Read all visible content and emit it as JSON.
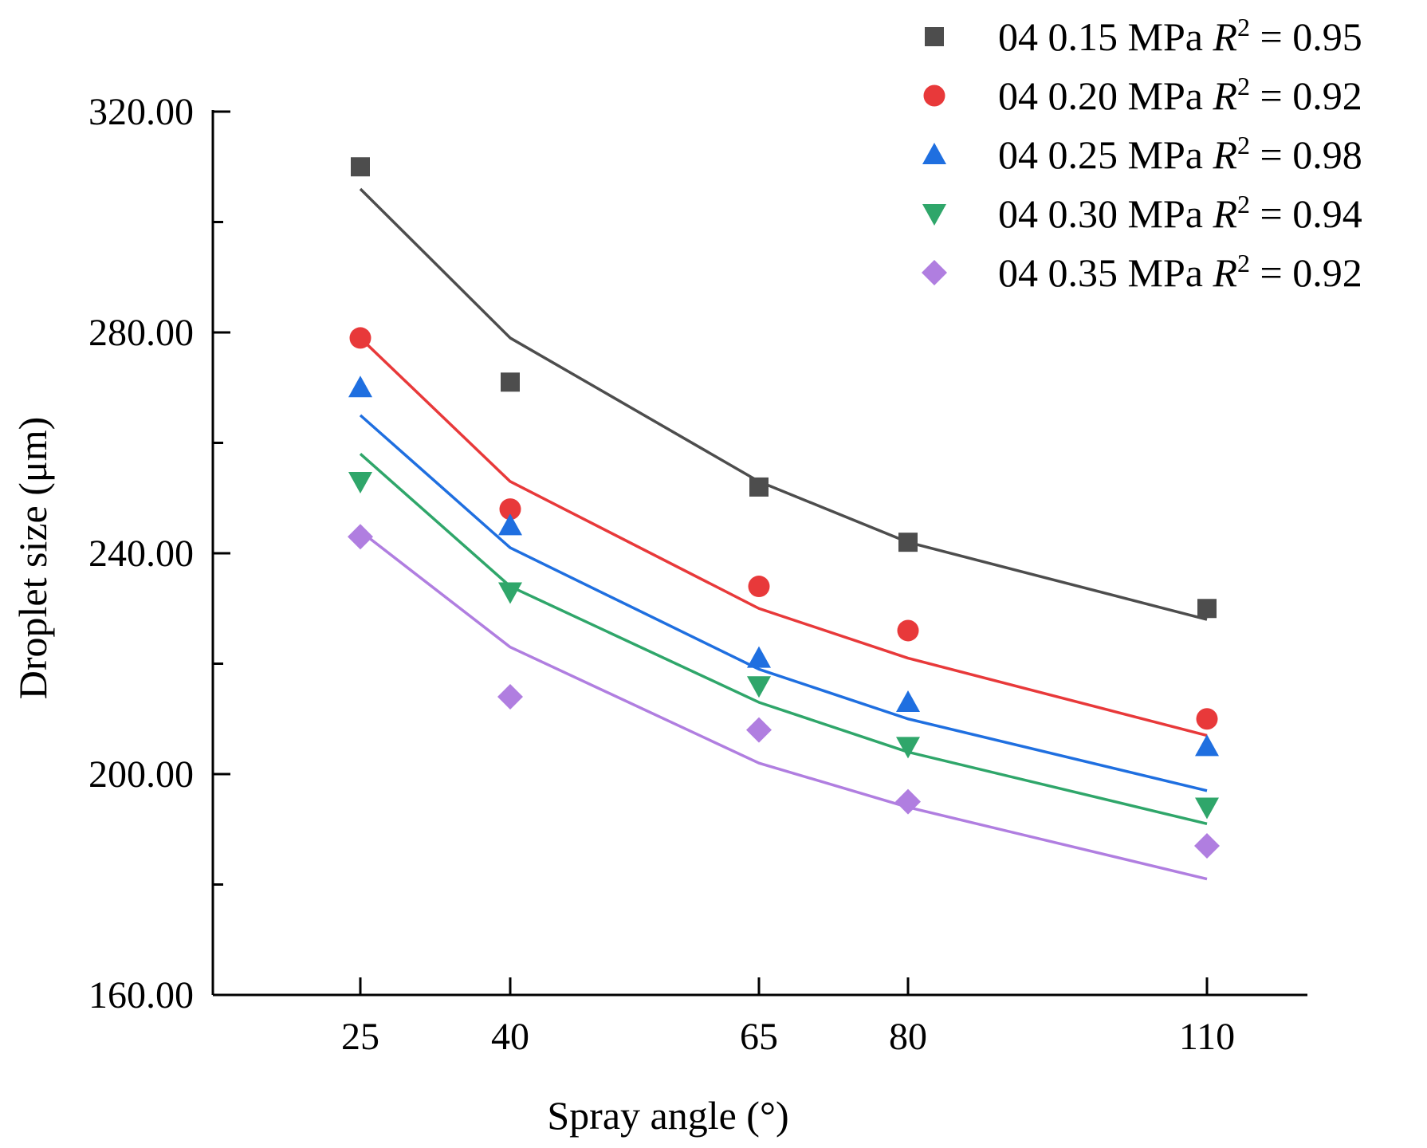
{
  "chart_data": {
    "type": "scatter",
    "title": "",
    "xlabel": "Spray angle (°)",
    "ylabel": "Droplet size (μm)",
    "x": [
      25,
      40,
      65,
      80,
      110
    ],
    "x_ticks": [
      "25",
      "40",
      "65",
      "80",
      "110"
    ],
    "y_ticks": [
      "160.00",
      "200.00",
      "240.00",
      "280.00",
      "320.00"
    ],
    "ylim": [
      160,
      320
    ],
    "x_scale": "categorical-like positions proportional to 1/angle",
    "grid": false,
    "legend_position": "top-right",
    "series": [
      {
        "name": "04 0.15 MPa",
        "r2_label": "R",
        "r2_sup": "2",
        "r2_value": "= 0.95",
        "marker": "square",
        "color": "#4d4d4d",
        "points": [
          310,
          271,
          252,
          242,
          230
        ],
        "fit": [
          306,
          279,
          253,
          242,
          228
        ]
      },
      {
        "name": "04 0.20 MPa",
        "r2_label": "R",
        "r2_sup": "2",
        "r2_value": "= 0.92",
        "marker": "circle",
        "color": "#e8393a",
        "points": [
          279,
          248,
          234,
          226,
          210
        ],
        "fit": [
          279,
          253,
          230,
          221,
          207
        ]
      },
      {
        "name": "04 0.25 MPa",
        "r2_label": "R",
        "r2_sup": "2",
        "r2_value": "= 0.98",
        "marker": "triangle-up",
        "color": "#1f6fe0",
        "points": [
          270,
          245,
          221,
          213,
          205
        ],
        "fit": [
          265,
          241,
          219,
          210,
          197
        ]
      },
      {
        "name": "04 0.30 MPa",
        "r2_label": "R",
        "r2_sup": "2",
        "r2_value": "= 0.94",
        "marker": "triangle-down",
        "color": "#2fa66a",
        "points": [
          253,
          233,
          216,
          205,
          194
        ],
        "fit": [
          258,
          234,
          213,
          204,
          191
        ]
      },
      {
        "name": "04 0.35 MPa",
        "r2_label": "R",
        "r2_sup": "2",
        "r2_value": "= 0.92",
        "marker": "diamond",
        "color": "#b07ee0",
        "points": [
          243,
          214,
          208,
          195,
          187
        ],
        "fit": [
          244,
          223,
          202,
          194,
          181
        ]
      }
    ]
  }
}
